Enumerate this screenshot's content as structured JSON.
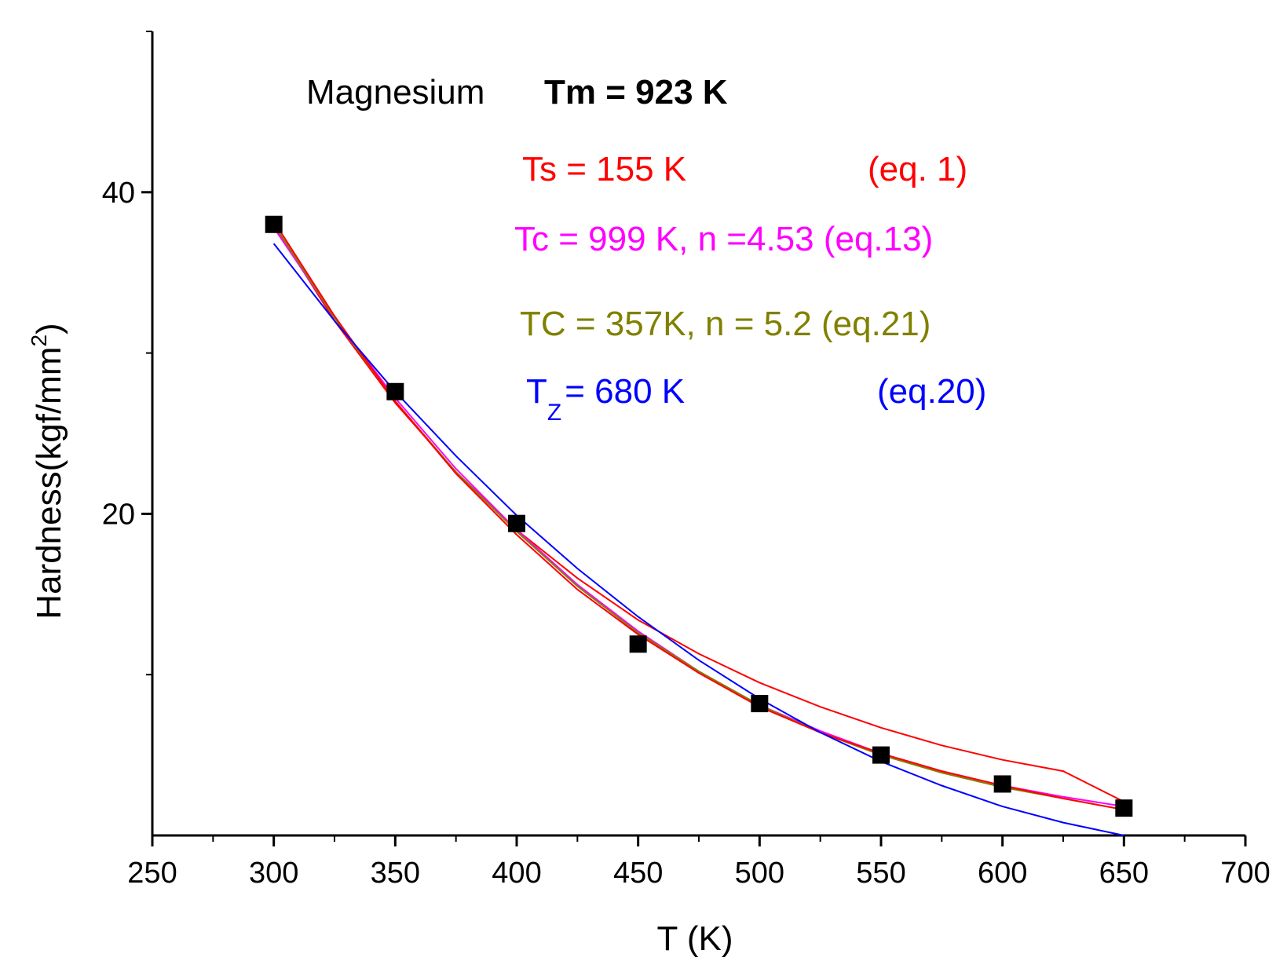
{
  "chart_data": {
    "type": "scatter",
    "title": "",
    "xlabel": "T (K)",
    "ylabel_main": "Hardness(kgf/mm",
    "ylabel_sup": "2",
    "ylabel_close": ")",
    "xlim": [
      250,
      700
    ],
    "ylim": [
      0,
      50
    ],
    "x_ticks": [
      250,
      300,
      350,
      400,
      450,
      500,
      550,
      600,
      650,
      700
    ],
    "x_tick_labels": [
      "250",
      "300",
      "350",
      "400",
      "450",
      "500",
      "550",
      "600",
      "650",
      "700"
    ],
    "y_major_ticks": [
      20,
      40
    ],
    "y_tick_labels": [
      "20",
      "40"
    ],
    "y_minor_ticks": [
      10,
      30,
      50
    ],
    "series": [
      {
        "name": "Magnesium data",
        "kind": "points",
        "color": "#000000",
        "x": [
          300,
          350,
          400,
          450,
          500,
          550,
          600,
          650
        ],
        "y": [
          38.0,
          27.6,
          19.4,
          11.9,
          8.2,
          5.0,
          3.2,
          1.7
        ]
      },
      {
        "name": "eq. 1",
        "kind": "line",
        "color": "#ff0000",
        "x": [
          300,
          325,
          350,
          375,
          400,
          425,
          450,
          475,
          500,
          525,
          550,
          575,
          600,
          625,
          650
        ],
        "y": [
          38.0,
          32.0,
          26.9,
          22.6,
          19.0,
          16.0,
          13.4,
          11.3,
          9.5,
          8.0,
          6.7,
          5.6,
          4.7,
          4.0,
          2.1
        ]
      },
      {
        "name": "eq.13",
        "kind": "line",
        "color": "#ff00ff",
        "x": [
          300,
          325,
          350,
          375,
          400,
          425,
          450,
          475,
          500,
          525,
          550,
          575,
          600,
          625,
          650
        ],
        "y": [
          37.8,
          32.2,
          27.2,
          22.8,
          19.0,
          15.6,
          12.7,
          10.2,
          8.1,
          6.5,
          5.1,
          4.0,
          3.1,
          2.4,
          1.8
        ]
      },
      {
        "name": "eq.21",
        "kind": "line",
        "color": "#808000",
        "x": [
          300,
          325,
          350,
          375,
          400,
          425,
          450,
          475,
          500,
          525,
          550,
          575,
          600,
          625,
          650
        ],
        "y": [
          38.0,
          32.2,
          27.0,
          22.6,
          18.9,
          15.5,
          12.6,
          10.2,
          8.1,
          6.4,
          5.0,
          3.9,
          3.0,
          2.3,
          1.6
        ]
      },
      {
        "name": "eq.1 secondary",
        "kind": "line",
        "color": "#ff0000",
        "x": [
          300,
          325,
          350,
          375,
          400,
          425,
          450,
          475,
          500,
          525,
          550,
          575,
          600,
          625,
          650
        ],
        "y": [
          38.2,
          32.3,
          27.0,
          22.5,
          18.7,
          15.3,
          12.5,
          10.1,
          8.0,
          6.4,
          5.1,
          4.0,
          3.1,
          2.3,
          1.6
        ]
      },
      {
        "name": "eq.20",
        "kind": "line",
        "color": "#0000ff",
        "x": [
          300,
          325,
          350,
          375,
          400,
          425,
          450,
          475,
          500,
          525,
          550,
          575,
          600,
          625,
          650
        ],
        "y": [
          36.8,
          32.0,
          27.6,
          23.6,
          19.9,
          16.6,
          13.6,
          10.9,
          8.5,
          6.4,
          4.6,
          3.1,
          1.8,
          0.8,
          0.0
        ]
      }
    ],
    "annotations": [
      {
        "id": "material",
        "text": "Magnesium",
        "color": "#000000",
        "bold": false
      },
      {
        "id": "tm",
        "text": "Tm = 923 K",
        "color": "#000000",
        "bold": true
      },
      {
        "id": "ts",
        "text": "Ts = 155  K",
        "color": "#ff0000",
        "bold": false
      },
      {
        "id": "ts_eq",
        "text": "(eq. 1)",
        "color": "#ff0000",
        "bold": false
      },
      {
        "id": "tc",
        "text": "Tc = 999 K, n =4.53  (eq.13)",
        "color": "#ff00ff",
        "bold": false
      },
      {
        "id": "tc2",
        "text": "TC = 357K,   n = 5.2  (eq.21)",
        "color": "#808000",
        "bold": false
      },
      {
        "id": "tz_main",
        "text": "T",
        "color": "#0000ff",
        "bold": false
      },
      {
        "id": "tz_sub",
        "text": "Z",
        "color": "#0000ff",
        "bold": false
      },
      {
        "id": "tz_rest",
        "text": "= 680 K",
        "color": "#0000ff",
        "bold": false
      },
      {
        "id": "tz_eq",
        "text": "(eq.20)",
        "color": "#0000ff",
        "bold": false
      }
    ]
  }
}
